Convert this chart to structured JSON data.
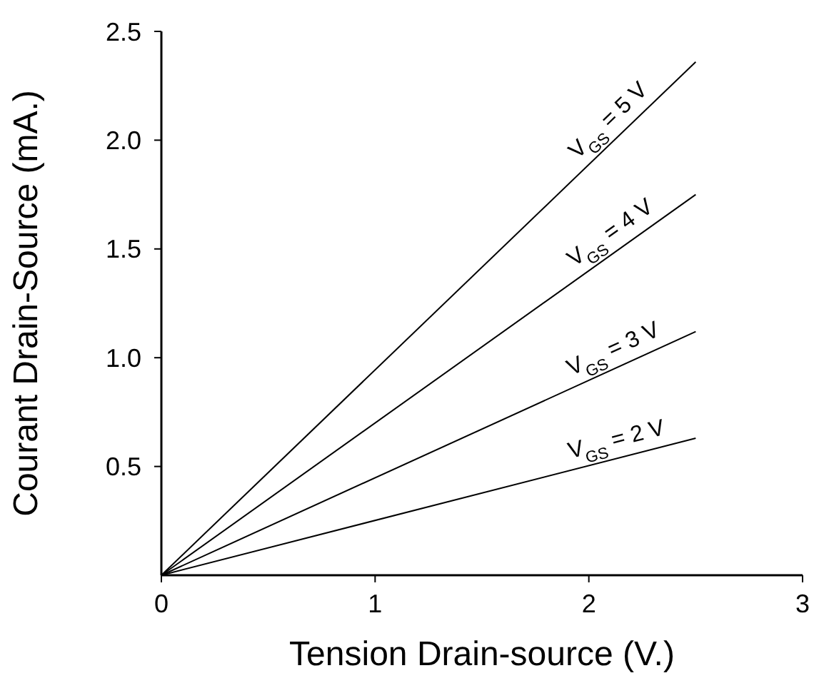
{
  "chart_data": {
    "type": "line",
    "xlabel": "Tension Drain-source (V.)",
    "ylabel": "Courant Drain-Source (mA.)",
    "xlim": [
      0,
      3
    ],
    "xticks": [
      0,
      1,
      2,
      3
    ],
    "ylim": [
      0,
      2.5
    ],
    "yticks": [
      0.5,
      {
        "value": 1,
        "label": "1.0"
      },
      1.5,
      {
        "value": 2,
        "label": "2.0"
      },
      2.5
    ],
    "x": [
      0,
      2.5
    ],
    "series": [
      {
        "color": "#000000",
        "values": [
          0,
          2.36
        ]
      },
      {
        "color": "#000000",
        "values": [
          0,
          1.75
        ]
      },
      {
        "color": "#000000",
        "values": [
          0,
          1.12
        ]
      },
      {
        "color": "#000000",
        "values": [
          0,
          0.63
        ]
      }
    ],
    "annotations": [
      "V$_{GS}$ = 5 V",
      "V$_{GS}$ = 4 V",
      "V$_{GS}$ = 3 V",
      "V$_{GS}$ = 2 V"
    ],
    "grid": false,
    "marker": "none",
    "line_style": "solid"
  }
}
